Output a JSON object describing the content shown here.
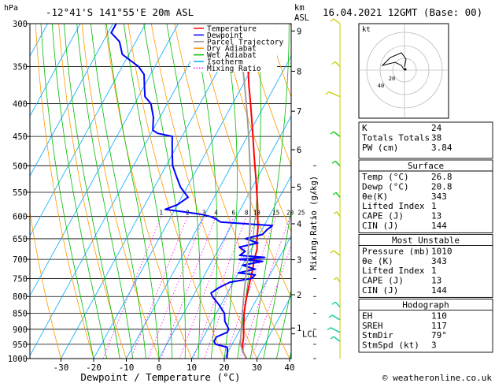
{
  "header": {
    "pressure_unit": "hPa",
    "location": "-12°41'S 141°55'E 20m ASL",
    "km_label": "km",
    "asl_label": "ASL",
    "datetime": "16.04.2021 12GMT (Base: 00)",
    "credit": "© weatheronline.co.uk"
  },
  "legend": {
    "items": [
      {
        "label": "Temperature",
        "color": "#ff0000"
      },
      {
        "label": "Dewpoint",
        "color": "#0000ff"
      },
      {
        "label": "Parcel Trajectory",
        "color": "#999999"
      },
      {
        "label": "Dry Adiabat",
        "color": "#ff9900"
      },
      {
        "label": "Wet Adiabat",
        "color": "#00bb00"
      },
      {
        "label": "Isotherm",
        "color": "#00aaff"
      },
      {
        "label": "Mixing Ratio",
        "color": "#ff00ff"
      }
    ]
  },
  "chart_data": {
    "type": "line",
    "xlabel": "Dewpoint / Temperature (°C)",
    "ylabel_right": "Mixing Ratio (g/kg)",
    "xlim": [
      -40,
      40
    ],
    "ylim": [
      1000,
      300
    ],
    "x_ticks": [
      -30,
      -20,
      -10,
      0,
      10,
      20,
      30,
      40
    ],
    "pressure_levels": [
      300,
      350,
      400,
      450,
      500,
      550,
      600,
      650,
      700,
      750,
      800,
      850,
      900,
      950,
      1000
    ],
    "km_ticks": [
      {
        "label": "1",
        "p": 896
      },
      {
        "label": "2",
        "p": 795
      },
      {
        "label": "3",
        "p": 701
      },
      {
        "label": "4",
        "p": 616
      },
      {
        "label": "5",
        "p": 540
      },
      {
        "label": "6",
        "p": 472
      },
      {
        "label": "7",
        "p": 411
      },
      {
        "label": "8",
        "p": 356
      },
      {
        "label": "9",
        "p": 308
      }
    ],
    "lcl": {
      "label": "LCL",
      "p": 915
    },
    "mixing_ratio_labels": [
      "1",
      "2",
      "3",
      "4",
      "6",
      "8",
      "10",
      "15",
      "20",
      "25"
    ],
    "series": [
      {
        "name": "Temperature",
        "color": "#ff0000",
        "p": [
          1000,
          975,
          950,
          925,
          900,
          875,
          850,
          825,
          800,
          775,
          750,
          725,
          700,
          675,
          650,
          625,
          600,
          575,
          550,
          525,
          500,
          475,
          450,
          425,
          400,
          375,
          350
        ],
        "t": [
          26.8,
          24.5,
          23.2,
          22.3,
          21.0,
          19.8,
          18.5,
          17.5,
          16.5,
          15.6,
          14.7,
          13.8,
          12.6,
          11.8,
          10.0,
          8.5,
          6.5,
          4.5,
          2.2,
          -0.2,
          -2.8,
          -5.5,
          -8.3,
          -11.3,
          -14.5,
          -18.0,
          -21.5
        ]
      },
      {
        "name": "Dewpoint",
        "color": "#0000ff",
        "p": [
          1000,
          975,
          960,
          950,
          940,
          925,
          910,
          900,
          875,
          850,
          825,
          800,
          790,
          775,
          760,
          750,
          740,
          735,
          725,
          715,
          705,
          700,
          695,
          690,
          680,
          670,
          660,
          650,
          640,
          630,
          620,
          612,
          605,
          600,
          595,
          590,
          585,
          575,
          560,
          550,
          540,
          520,
          500,
          480,
          460,
          450,
          445,
          440,
          420,
          400,
          390,
          375,
          360,
          350,
          335,
          320,
          310,
          300
        ],
        "t": [
          20.8,
          19.8,
          19.0,
          15.0,
          14.0,
          14.0,
          16.5,
          16.5,
          14.0,
          12.5,
          9.5,
          6.0,
          5.0,
          6.5,
          9.0,
          15.0,
          15.5,
          10.0,
          14.5,
          10.0,
          15.5,
          8.0,
          15.5,
          7.5,
          8.5,
          6.0,
          11.0,
          6.5,
          11.0,
          11.5,
          12.5,
          -4.0,
          -6.0,
          -8.0,
          -11.5,
          -17.0,
          -23.0,
          -20.0,
          -18.0,
          -20.0,
          -22.0,
          -25.0,
          -28.0,
          -30.0,
          -32.0,
          -33.0,
          -38.0,
          -40.0,
          -42.0,
          -45.0,
          -48.0,
          -50.0,
          -52.0,
          -55.0,
          -62.0,
          -65.0,
          -69.0,
          -69.0
        ]
      },
      {
        "name": "Parcel Trajectory",
        "color": "#999999",
        "p": [
          1000,
          975,
          950,
          925,
          915,
          900,
          875,
          850,
          825,
          800,
          775,
          750,
          725,
          700,
          675,
          650,
          625,
          600,
          575,
          550,
          525,
          500,
          475,
          450,
          425,
          400,
          375,
          350,
          325,
          300
        ],
        "t": [
          26.8,
          24.5,
          22.6,
          21.4,
          21.0,
          20.3,
          19.2,
          18.0,
          16.8,
          15.6,
          14.4,
          13.2,
          12.0,
          10.6,
          9.1,
          7.6,
          6.0,
          4.2,
          2.3,
          0.3,
          -1.9,
          -4.3,
          -6.9,
          -9.6,
          -12.6,
          -15.8,
          -19.3,
          -23.1,
          -27.3,
          -32.0
        ]
      }
    ]
  },
  "hodograph": {
    "unit_label": "kt",
    "ring_labels": [
      "20",
      "40"
    ]
  },
  "indices": {
    "rows": [
      {
        "label": "K",
        "value": "24"
      },
      {
        "label": "Totals Totals",
        "value": "38"
      },
      {
        "label": "PW (cm)",
        "value": "3.84"
      }
    ],
    "surface": {
      "title": "Surface",
      "rows": [
        {
          "label": "Temp (°C)",
          "value": "26.8"
        },
        {
          "label": "Dewp (°C)",
          "value": "20.8"
        },
        {
          "label": "θe(K)",
          "value": "343"
        },
        {
          "label": "Lifted Index",
          "value": "1"
        },
        {
          "label": "CAPE (J)",
          "value": "13"
        },
        {
          "label": "CIN (J)",
          "value": "144"
        }
      ]
    },
    "most_unstable": {
      "title": "Most Unstable",
      "rows": [
        {
          "label": "Pressure (mb)",
          "value": "1010"
        },
        {
          "label": "θe (K)",
          "value": "343"
        },
        {
          "label": "Lifted Index",
          "value": "1"
        },
        {
          "label": "CAPE (J)",
          "value": "13"
        },
        {
          "label": "CIN (J)",
          "value": "144"
        }
      ]
    },
    "hodograph_table": {
      "title": "Hodograph",
      "rows": [
        {
          "label": "EH",
          "value": "110"
        },
        {
          "label": "SREH",
          "value": "117"
        },
        {
          "label": "StmDir",
          "value": "79°"
        },
        {
          "label": "StmSpd (kt)",
          "value": "3"
        }
      ]
    }
  }
}
